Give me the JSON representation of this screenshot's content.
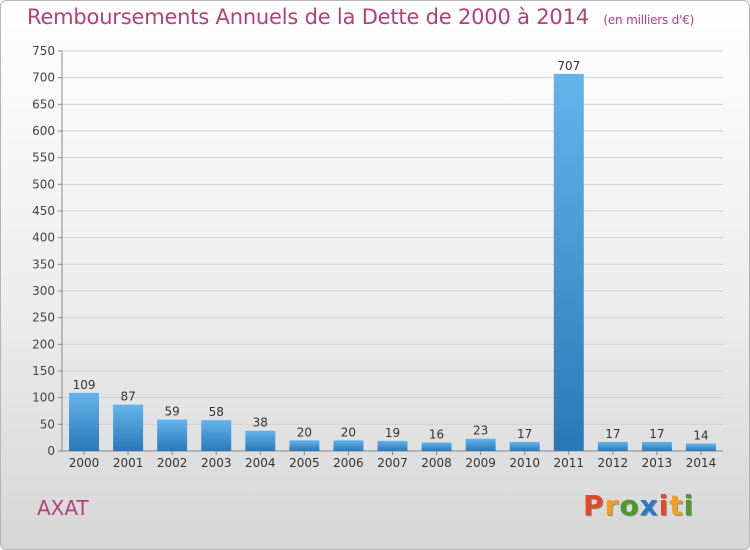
{
  "header": {
    "title": "Remboursements Annuels de la Dette de 2000 à 2014",
    "subtitle": "(en milliers d'€)"
  },
  "footer": {
    "place": "AXAT",
    "logo": "Proxiti"
  },
  "colors": {
    "title": "#b2407a",
    "bar_top": "#64b4ec",
    "bar_bottom": "#2a78b8",
    "logo_letters": [
      "#e04a2a",
      "#f0a020",
      "#4a9a2a",
      "#2a78c8",
      "#e04a2a",
      "#f0a020",
      "#4a9a2a"
    ]
  },
  "chart_data": {
    "type": "bar",
    "categories": [
      "2000",
      "2001",
      "2002",
      "2003",
      "2004",
      "2005",
      "2006",
      "2007",
      "2008",
      "2009",
      "2010",
      "2011",
      "2012",
      "2013",
      "2014"
    ],
    "values": [
      109,
      87,
      59,
      58,
      38,
      20,
      20,
      19,
      16,
      23,
      17,
      707,
      17,
      17,
      14
    ],
    "ylim": [
      0,
      750
    ],
    "yticks": [
      0,
      50,
      100,
      150,
      200,
      250,
      300,
      350,
      400,
      450,
      500,
      550,
      600,
      650,
      700,
      750
    ],
    "grid": true,
    "legend": "none"
  }
}
